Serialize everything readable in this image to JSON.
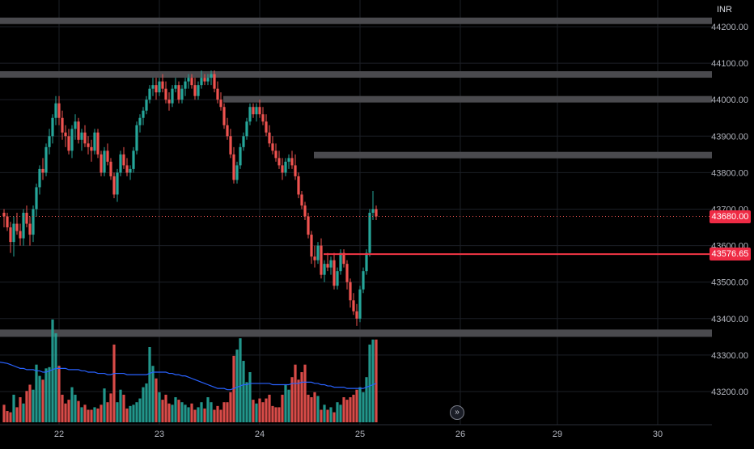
{
  "chart_data": {
    "type": "candlestick",
    "currency": "INR",
    "price_axis": {
      "min": 43160,
      "max": 44260,
      "ticks": [
        "44200.00",
        "44100.00",
        "44000.00",
        "43900.00",
        "43800.00",
        "43700.00",
        "43600.00",
        "43500.00",
        "43400.00",
        "43300.00",
        "43200.00"
      ]
    },
    "time_axis": {
      "labels": [
        {
          "label": "22",
          "index": 17
        },
        {
          "label": "23",
          "index": 48
        },
        {
          "label": "24",
          "index": 79
        },
        {
          "label": "25",
          "index": 110
        },
        {
          "label": "26",
          "index": 141
        },
        {
          "label": "29",
          "index": 171
        },
        {
          "label": "30",
          "index": 202
        }
      ]
    },
    "last_price": "43680.00",
    "level_line": "43576.65",
    "zones": [
      {
        "from": 44210,
        "to": 44225
      },
      {
        "from": 44062,
        "to": 44078
      },
      {
        "from": 43996,
        "to": 44010
      },
      {
        "from": 43846,
        "to": 43857
      },
      {
        "from": 43350,
        "to": 43370
      }
    ],
    "candles": [
      [
        43690,
        43700,
        43650,
        43680
      ],
      [
        43680,
        43690,
        43640,
        43650
      ],
      [
        43650,
        43665,
        43580,
        43610
      ],
      [
        43610,
        43680,
        43570,
        43660
      ],
      [
        43660,
        43690,
        43630,
        43640
      ],
      [
        43640,
        43660,
        43600,
        43620
      ],
      [
        43620,
        43700,
        43600,
        43690
      ],
      [
        43690,
        43710,
        43650,
        43660
      ],
      [
        43660,
        43680,
        43600,
        43630
      ],
      [
        43630,
        43710,
        43610,
        43700
      ],
      [
        43700,
        43770,
        43680,
        43760
      ],
      [
        43760,
        43820,
        43740,
        43810
      ],
      [
        43810,
        43840,
        43780,
        43800
      ],
      [
        43800,
        43880,
        43790,
        43870
      ],
      [
        43870,
        43920,
        43850,
        43900
      ],
      [
        43900,
        43960,
        43880,
        43950
      ],
      [
        43950,
        44010,
        43930,
        43990
      ],
      [
        43990,
        44010,
        43930,
        43950
      ],
      [
        43950,
        43970,
        43890,
        43910
      ],
      [
        43910,
        43930,
        43870,
        43900
      ],
      [
        43900,
        43920,
        43850,
        43860
      ],
      [
        43860,
        43930,
        43840,
        43920
      ],
      [
        43920,
        43960,
        43890,
        43940
      ],
      [
        43940,
        43950,
        43880,
        43890
      ],
      [
        43890,
        43920,
        43860,
        43910
      ],
      [
        43910,
        43930,
        43870,
        43880
      ],
      [
        43880,
        43900,
        43850,
        43870
      ],
      [
        43870,
        43890,
        43830,
        43860
      ],
      [
        43860,
        43920,
        43850,
        43910
      ],
      [
        43910,
        43920,
        43840,
        43850
      ],
      [
        43850,
        43860,
        43790,
        43800
      ],
      [
        43800,
        43870,
        43790,
        43860
      ],
      [
        43860,
        43880,
        43820,
        43830
      ],
      [
        43830,
        43840,
        43780,
        43790
      ],
      [
        43790,
        43800,
        43730,
        43740
      ],
      [
        43740,
        43810,
        43720,
        43800
      ],
      [
        43800,
        43860,
        43790,
        43850
      ],
      [
        43850,
        43870,
        43810,
        43820
      ],
      [
        43820,
        43840,
        43790,
        43800
      ],
      [
        43800,
        43820,
        43780,
        43810
      ],
      [
        43810,
        43870,
        43800,
        43860
      ],
      [
        43860,
        43940,
        43850,
        43930
      ],
      [
        43930,
        43960,
        43910,
        43950
      ],
      [
        43950,
        43980,
        43930,
        43970
      ],
      [
        43970,
        44010,
        43960,
        44000
      ],
      [
        44000,
        44040,
        43990,
        44030
      ],
      [
        44030,
        44060,
        44010,
        44040
      ],
      [
        44040,
        44060,
        44000,
        44020
      ],
      [
        44020,
        44060,
        44010,
        44050
      ],
      [
        44050,
        44070,
        44020,
        44030
      ],
      [
        44030,
        44050,
        43990,
        44000
      ],
      [
        44000,
        44020,
        43970,
        43990
      ],
      [
        43990,
        44040,
        43980,
        44030
      ],
      [
        44030,
        44060,
        44020,
        44040
      ],
      [
        44040,
        44050,
        43990,
        44000
      ],
      [
        44000,
        44040,
        43990,
        44030
      ],
      [
        44030,
        44060,
        44010,
        44050
      ],
      [
        44050,
        44070,
        44030,
        44060
      ],
      [
        44060,
        44070,
        44030,
        44040
      ],
      [
        44040,
        44060,
        44000,
        44010
      ],
      [
        44010,
        44050,
        44000,
        44040
      ],
      [
        44040,
        44080,
        44030,
        44060
      ],
      [
        44060,
        44070,
        44040,
        44050
      ],
      [
        44050,
        44070,
        44040,
        44060
      ],
      [
        44060,
        44080,
        44040,
        44070
      ],
      [
        44070,
        44080,
        44020,
        44030
      ],
      [
        44030,
        44050,
        43990,
        44000
      ],
      [
        44000,
        44020,
        43970,
        43980
      ],
      [
        43980,
        43990,
        43920,
        43930
      ],
      [
        43930,
        43950,
        43890,
        43900
      ],
      [
        43900,
        43920,
        43840,
        43850
      ],
      [
        43850,
        43870,
        43770,
        43780
      ],
      [
        43780,
        43830,
        43770,
        43820
      ],
      [
        43820,
        43880,
        43810,
        43870
      ],
      [
        43870,
        43910,
        43860,
        43900
      ],
      [
        43900,
        43950,
        43890,
        43940
      ],
      [
        43940,
        43990,
        43930,
        43980
      ],
      [
        43980,
        43990,
        43950,
        43960
      ],
      [
        43960,
        43990,
        43940,
        43980
      ],
      [
        43980,
        44000,
        43950,
        43960
      ],
      [
        43960,
        43980,
        43930,
        43940
      ],
      [
        43940,
        43960,
        43900,
        43910
      ],
      [
        43910,
        43930,
        43870,
        43880
      ],
      [
        43880,
        43900,
        43850,
        43860
      ],
      [
        43860,
        43880,
        43830,
        43840
      ],
      [
        43840,
        43860,
        43810,
        43820
      ],
      [
        43820,
        43840,
        43780,
        43800
      ],
      [
        43800,
        43840,
        43790,
        43830
      ],
      [
        43830,
        43850,
        43810,
        43840
      ],
      [
        43840,
        43860,
        43810,
        43820
      ],
      [
        43820,
        43850,
        43780,
        43790
      ],
      [
        43790,
        43800,
        43730,
        43740
      ],
      [
        43740,
        43750,
        43700,
        43710
      ],
      [
        43710,
        43720,
        43670,
        43680
      ],
      [
        43680,
        43690,
        43620,
        43630
      ],
      [
        43630,
        43640,
        43550,
        43570
      ],
      [
        43570,
        43600,
        43540,
        43560
      ],
      [
        43560,
        43610,
        43550,
        43600
      ],
      [
        43600,
        43620,
        43510,
        43520
      ],
      [
        43520,
        43560,
        43500,
        43550
      ],
      [
        43550,
        43580,
        43530,
        43540
      ],
      [
        43540,
        43570,
        43520,
        43560
      ],
      [
        43560,
        43580,
        43480,
        43490
      ],
      [
        43490,
        43540,
        43480,
        43530
      ],
      [
        43530,
        43590,
        43520,
        43580
      ],
      [
        43580,
        43590,
        43540,
        43550
      ],
      [
        43550,
        43560,
        43480,
        43500
      ],
      [
        43500,
        43510,
        43430,
        43450
      ],
      [
        43450,
        43470,
        43410,
        43420
      ],
      [
        43420,
        43440,
        43380,
        43400
      ],
      [
        43400,
        43490,
        43390,
        43480
      ],
      [
        43480,
        43540,
        43470,
        43530
      ],
      [
        43530,
        43590,
        43520,
        43580
      ],
      [
        43580,
        43700,
        43570,
        43690
      ],
      [
        43690,
        43750,
        43670,
        43700
      ],
      [
        43700,
        43710,
        43670,
        43680
      ]
    ],
    "volumes": [
      14,
      9,
      8,
      22,
      12,
      20,
      15,
      25,
      30,
      26,
      46,
      37,
      34,
      43,
      44,
      82,
      71,
      45,
      22,
      15,
      18,
      28,
      22,
      17,
      12,
      14,
      10,
      10,
      12,
      11,
      14,
      27,
      16,
      23,
      62,
      16,
      26,
      22,
      11,
      13,
      14,
      16,
      19,
      28,
      31,
      60,
      45,
      35,
      24,
      18,
      22,
      15,
      14,
      20,
      18,
      16,
      14,
      12,
      15,
      10,
      12,
      16,
      11,
      20,
      16,
      10,
      13,
      10,
      16,
      16,
      24,
      53,
      58,
      67,
      49,
      32,
      40,
      18,
      15,
      19,
      16,
      19,
      22,
      13,
      12,
      12,
      22,
      30,
      26,
      36,
      46,
      34,
      40,
      46,
      22,
      20,
      24,
      21,
      10,
      14,
      10,
      12,
      8,
      16,
      14,
      20,
      18,
      20,
      22,
      26,
      28,
      24,
      36,
      62,
      66,
      66
    ],
    "volume_ma": [
      48,
      47,
      46,
      45,
      44,
      43,
      43,
      42,
      42,
      42,
      41,
      41,
      40,
      40,
      41,
      42,
      43,
      43,
      43,
      43,
      42,
      42,
      42,
      42,
      41,
      41,
      40,
      40,
      40,
      39,
      39,
      39,
      38,
      38,
      39,
      39,
      39,
      39,
      38,
      38,
      38,
      38,
      38,
      38,
      38,
      39,
      40,
      40,
      40,
      40,
      40,
      39,
      39,
      38,
      38,
      37,
      37,
      36,
      35,
      34,
      33,
      32,
      31,
      30,
      29,
      28,
      27,
      27,
      27,
      26,
      26,
      27,
      28,
      29,
      30,
      30,
      31,
      31,
      31,
      31,
      31,
      31,
      31,
      30,
      30,
      30,
      30,
      30,
      30,
      31,
      31,
      31,
      32,
      32,
      32,
      32,
      31,
      31,
      30,
      30,
      29,
      29,
      28,
      28,
      28,
      28,
      27,
      27,
      27,
      27,
      27,
      27,
      28,
      29,
      30,
      31
    ]
  }
}
